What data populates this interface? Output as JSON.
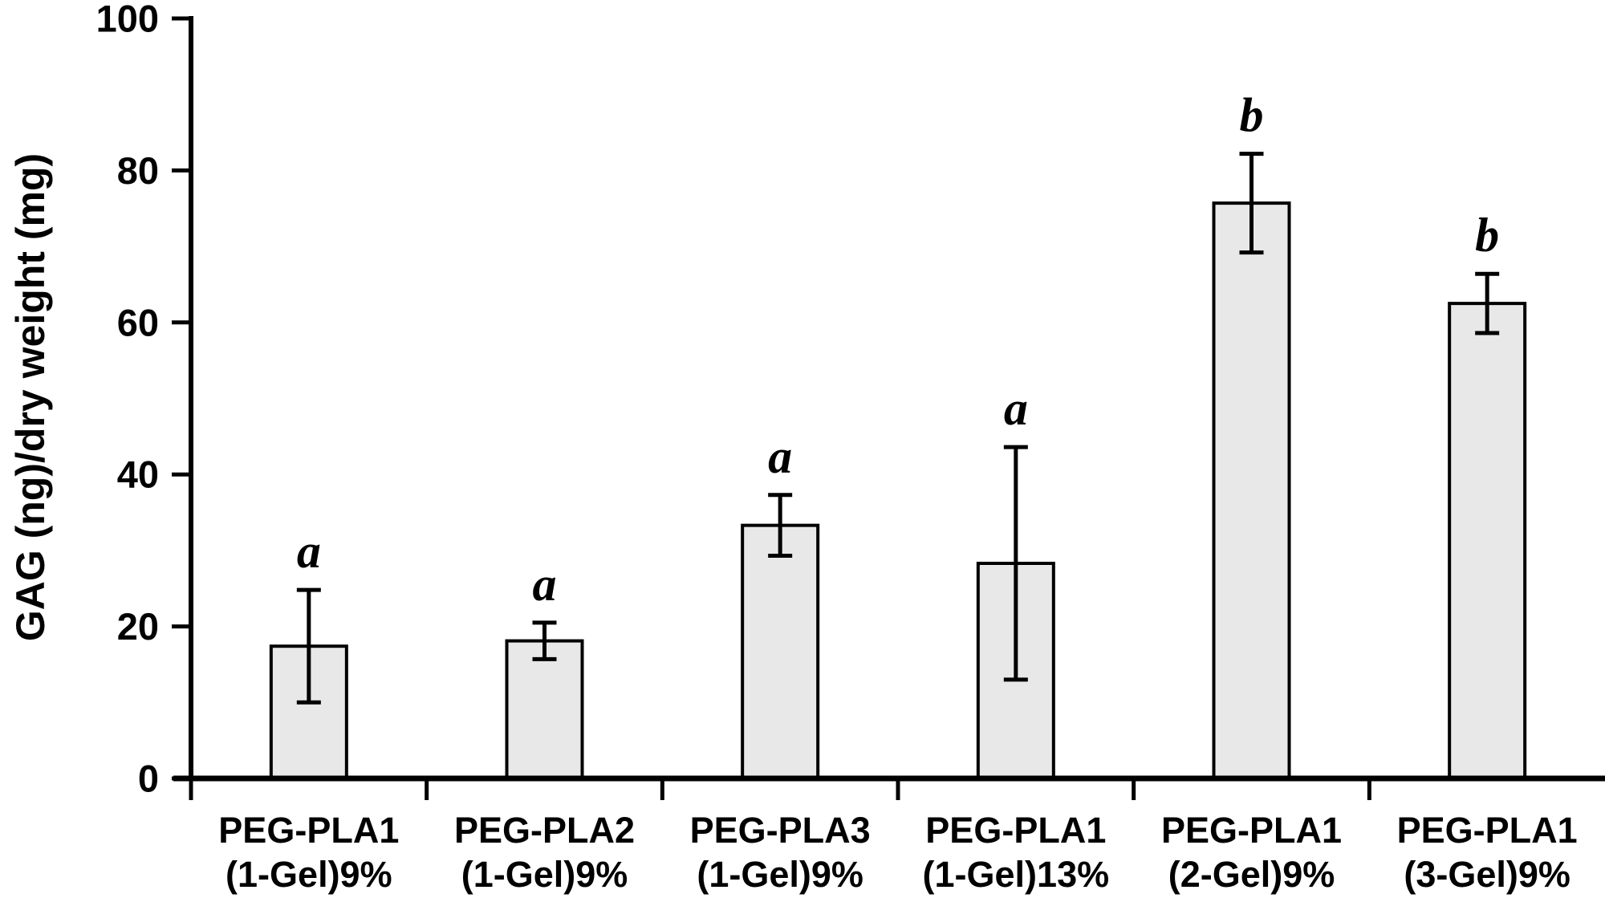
{
  "chart_data": {
    "type": "bar",
    "title": "",
    "xlabel": "",
    "ylabel": "GAG (ng)/dry weight (mg)",
    "ylim": [
      0,
      100
    ],
    "yticks": [
      0,
      20,
      40,
      60,
      80,
      100
    ],
    "grid": false,
    "legend": false,
    "background": "#ffffff",
    "bar_fill": "#e8e8e8",
    "bar_stroke": "#000000",
    "axis_color": "#000000",
    "categories": [
      "PEG-PLA1 (1-Gel)9%",
      "PEG-PLA2 (1-Gel)9%",
      "PEG-PLA3 (1-Gel)9%",
      "PEG-PLA1 (1-Gel)13%",
      "PEG-PLA1 (2-Gel)9%",
      "PEG-PLA1 (3-Gel)9%"
    ],
    "bars": [
      {
        "label": [
          "PEG-PLA1",
          "(1-Gel)9%"
        ],
        "value": 17.4,
        "error": 7.4,
        "sig": "a"
      },
      {
        "label": [
          "PEG-PLA2",
          "(1-Gel)9%"
        ],
        "value": 18.1,
        "error": 2.4,
        "sig": "a"
      },
      {
        "label": [
          "PEG-PLA3",
          "(1-Gel)9%"
        ],
        "value": 33.3,
        "error": 4.0,
        "sig": "a"
      },
      {
        "label": [
          "PEG-PLA1",
          "(1-Gel)13%"
        ],
        "value": 28.3,
        "error": 15.3,
        "sig": "a"
      },
      {
        "label": [
          "PEG-PLA1",
          "(2-Gel)9%"
        ],
        "value": 75.7,
        "error": 6.5,
        "sig": "b"
      },
      {
        "label": [
          "PEG-PLA1",
          "(3-Gel)9%"
        ],
        "value": 62.5,
        "error": 3.9,
        "sig": "b"
      }
    ]
  }
}
